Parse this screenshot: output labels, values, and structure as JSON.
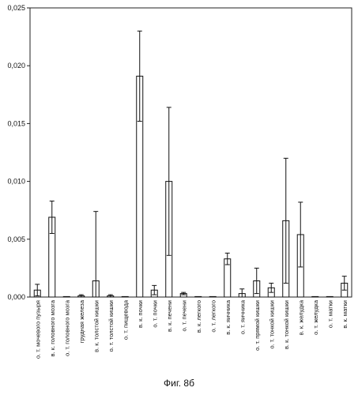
{
  "chart_data": {
    "type": "bar",
    "title": "",
    "xlabel": "",
    "ylabel": "",
    "ylim": [
      0,
      0.025
    ],
    "yticks": [
      "0,000",
      "0,005",
      "0,010",
      "0,015",
      "0,020",
      "0,025"
    ],
    "ytick_values": [
      0,
      0.005,
      0.01,
      0.015,
      0.02,
      0.025
    ],
    "grid": false,
    "legend": "none",
    "categories": [
      "о. т. мочевого пузыря",
      "в. к. головного мозга",
      "о. т. головного мозга",
      "грудная железа",
      "в. к. толстой кишки",
      "о. т. толстой кишки",
      "о. т. пищевода",
      "в. к. почки",
      "о. т. почки",
      "в. к. печени",
      "о. т. печени",
      "в. к. легкого",
      "о. т. легкого",
      "в. к. яичника",
      "о. т. яичника",
      "о. т. прямой кишки",
      "о. т. тонкой кишки",
      "в. к. тонкой кишки",
      "в. к. желудка",
      "о. т. желудка",
      "о. т. матки",
      "в. к. матки"
    ],
    "values": [
      0.0006,
      0.0069,
      0.0,
      0.0001,
      0.0014,
      0.0001,
      0.0,
      0.0191,
      0.0006,
      0.01,
      0.0003,
      0.0,
      0.0,
      0.0033,
      0.0003,
      0.0014,
      0.0008,
      0.0066,
      0.0054,
      0.0,
      0.0,
      0.0012
    ],
    "errors": [
      0.0005,
      0.0014,
      0.0,
      0.0001,
      0.006,
      0.0001,
      0.0,
      0.0039,
      0.0004,
      0.0064,
      0.0001,
      0.0,
      0.0,
      0.0005,
      0.0004,
      0.0011,
      0.0004,
      0.0054,
      0.0028,
      0.0,
      0.0,
      0.0006
    ]
  },
  "caption": "Фиг. 8б"
}
